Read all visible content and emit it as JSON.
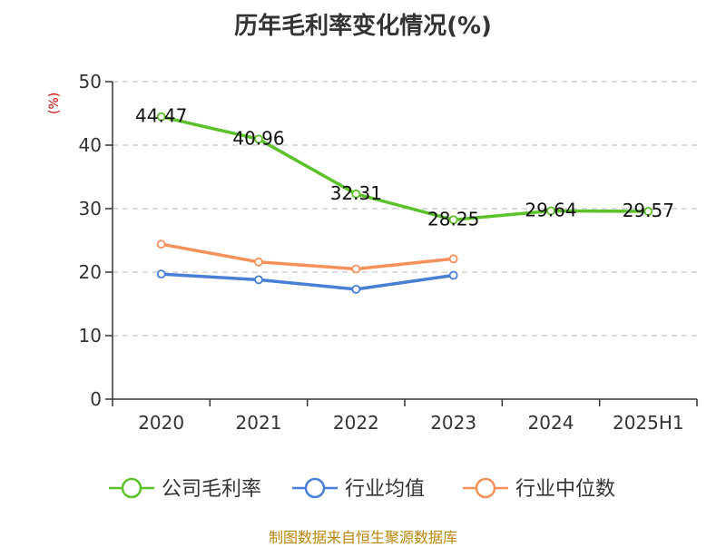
{
  "title": "历年毛利率变化情况(%)",
  "source": "制图数据来自恒生聚源数据库",
  "chart_data": {
    "type": "line",
    "title": "历年毛利率变化情况(%)",
    "ylabel": "(%)",
    "xlabel": "",
    "categories": [
      "2020",
      "2021",
      "2022",
      "2023",
      "2024",
      "2025H1"
    ],
    "ylim": [
      0,
      50
    ],
    "yticks": [
      "0",
      "10",
      "20",
      "30",
      "40",
      "50"
    ],
    "grid": true,
    "legend_position": "bottom",
    "series": [
      {
        "name": "公司毛利率",
        "color": "#5cc12b",
        "labels": true,
        "values": [
          44.47,
          40.96,
          32.31,
          28.25,
          29.64,
          29.57
        ],
        "value_labels": [
          "44.47",
          "40.96",
          "32.31",
          "28.25",
          "29.64",
          "29.57"
        ]
      },
      {
        "name": "行业均值",
        "color": "#4a7fd8",
        "labels": false,
        "values": [
          19.7,
          18.8,
          17.3,
          19.5,
          null,
          null
        ]
      },
      {
        "name": "行业中位数",
        "color": "#f5925c",
        "labels": false,
        "values": [
          24.4,
          21.6,
          20.5,
          22.1,
          null,
          null
        ]
      }
    ]
  }
}
